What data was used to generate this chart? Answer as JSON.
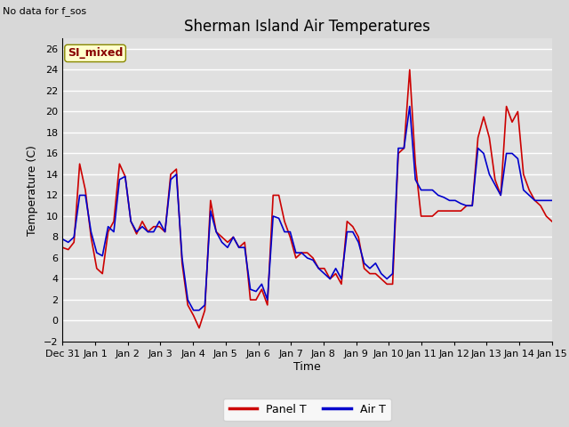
{
  "title": "Sherman Island Air Temperatures",
  "no_data_text": "No data for f_sos",
  "xlabel": "Time",
  "ylabel": "Temperature (C)",
  "ylim": [
    -2,
    27
  ],
  "yticks": [
    -2,
    0,
    2,
    4,
    6,
    8,
    10,
    12,
    14,
    16,
    18,
    20,
    22,
    24,
    26
  ],
  "bg_color": "#d8d8d8",
  "axes_bg_color": "#e0e0e0",
  "legend_label_panel": "Panel T",
  "legend_label_air": "Air T",
  "legend_color_panel": "#cc0000",
  "legend_color_air": "#0000cc",
  "si_mixed_label": "SI_mixed",
  "si_mixed_box_color": "#ffffcc",
  "si_mixed_text_color": "#880000",
  "panel_T": [
    7.0,
    6.8,
    7.5,
    15.0,
    12.5,
    8.0,
    5.0,
    4.5,
    8.5,
    9.5,
    15.0,
    13.8,
    9.5,
    8.3,
    9.5,
    8.5,
    9.0,
    9.0,
    8.5,
    14.0,
    14.5,
    5.5,
    1.5,
    0.5,
    -0.7,
    1.0,
    11.5,
    8.5,
    8.0,
    7.5,
    8.0,
    7.0,
    7.5,
    2.0,
    2.0,
    3.0,
    1.5,
    12.0,
    12.0,
    9.5,
    8.0,
    6.0,
    6.5,
    6.5,
    6.0,
    5.0,
    5.0,
    4.0,
    4.5,
    3.5,
    9.5,
    9.0,
    8.0,
    5.0,
    4.5,
    4.5,
    4.0,
    3.5,
    3.5,
    16.0,
    16.5,
    24.0,
    15.0,
    10.0,
    10.0,
    10.0,
    10.5,
    10.5,
    10.5,
    10.5,
    10.5,
    11.0,
    11.0,
    17.5,
    19.5,
    17.5,
    13.5,
    12.0,
    20.5,
    19.0,
    20.0,
    14.0,
    12.5,
    11.5,
    11.0,
    10.0,
    9.5
  ],
  "air_T": [
    7.8,
    7.5,
    8.0,
    12.0,
    12.0,
    8.5,
    6.5,
    6.2,
    9.0,
    8.5,
    13.5,
    13.8,
    9.5,
    8.5,
    9.0,
    8.5,
    8.5,
    9.5,
    8.5,
    13.5,
    14.0,
    6.0,
    2.0,
    1.0,
    1.0,
    1.5,
    10.5,
    8.5,
    7.5,
    7.0,
    8.0,
    7.0,
    7.0,
    3.0,
    2.8,
    3.5,
    2.0,
    10.0,
    9.8,
    8.5,
    8.5,
    6.5,
    6.5,
    6.0,
    5.8,
    5.0,
    4.5,
    4.0,
    5.0,
    4.0,
    8.5,
    8.5,
    7.5,
    5.5,
    5.0,
    5.5,
    4.5,
    4.0,
    4.5,
    16.5,
    16.5,
    20.5,
    13.5,
    12.5,
    12.5,
    12.5,
    12.0,
    11.8,
    11.5,
    11.5,
    11.2,
    11.0,
    11.0,
    16.5,
    16.0,
    14.0,
    13.0,
    12.0,
    16.0,
    16.0,
    15.5,
    12.5,
    12.0,
    11.5,
    11.5,
    11.5,
    11.5
  ],
  "x_tick_labels": [
    "Dec 31",
    "Jan 1",
    "Jan 2",
    "Jan 3",
    "Jan 4",
    "Jan 5",
    "Jan 6",
    "Jan 7",
    "Jan 8",
    "Jan 9",
    "Jan 10",
    "Jan 11",
    "Jan 12",
    "Jan 13",
    "Jan 14",
    "Jan 15"
  ],
  "line_width": 1.2,
  "title_fontsize": 12,
  "axis_label_fontsize": 9,
  "tick_fontsize": 8,
  "legend_fontsize": 9
}
